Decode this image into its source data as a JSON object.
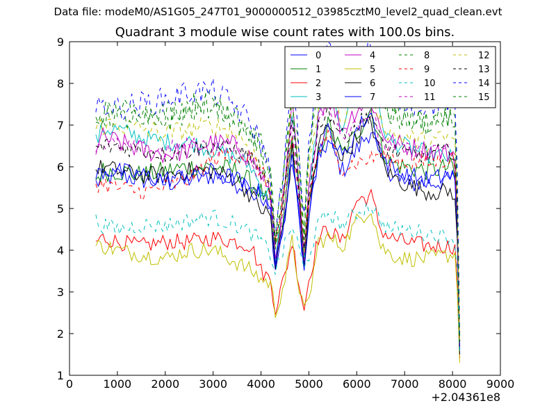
{
  "suptitle": "Data file: modeM0/AS1G05_247T01_9000000512_03985cztM0_level2_quad_clean.evt",
  "chart_data": {
    "type": "line",
    "title": "Quadrant 3 module wise count rates with 100.0s bins.",
    "xlabel": "",
    "ylabel": "",
    "x_offset_label": "+2.04361e8",
    "xlim": [
      0,
      9000
    ],
    "ylim": [
      1,
      9
    ],
    "x_ticks": [
      "0",
      "1000",
      "2000",
      "3000",
      "4000",
      "5000",
      "6000",
      "7000",
      "8000",
      "9000"
    ],
    "y_ticks": [
      "1",
      "2",
      "3",
      "4",
      "5",
      "6",
      "7",
      "8",
      "9"
    ],
    "grid": false,
    "legend_position": "top-right",
    "legend_columns": 4,
    "x_domain": [
      550,
      8150
    ],
    "keyframes_x": [
      550,
      700,
      1000,
      1500,
      2000,
      2500,
      3000,
      3500,
      3800,
      4000,
      4200,
      4300,
      4500,
      4650,
      4800,
      4900,
      5000,
      5200,
      5400,
      5700,
      6000,
      6300,
      6500,
      6700,
      7000,
      7500,
      8000,
      8080,
      8150
    ],
    "series": [
      {
        "name": "0",
        "color": "#0000ff",
        "dash": "solid",
        "keyframe_values": [
          5.6,
          5.7,
          5.8,
          5.7,
          5.6,
          5.7,
          5.8,
          5.6,
          5.6,
          5.4,
          4.9,
          3.5,
          4.8,
          6.2,
          4.8,
          3.6,
          4.8,
          6.2,
          6.6,
          5.9,
          6.4,
          6.9,
          6.2,
          5.9,
          5.6,
          5.6,
          5.7,
          5.5,
          1.6
        ],
        "noise": 0.25
      },
      {
        "name": "1",
        "color": "#008000",
        "dash": "solid",
        "keyframe_values": [
          5.7,
          5.9,
          5.9,
          5.8,
          5.9,
          6.0,
          6.0,
          5.9,
          5.6,
          5.4,
          5.0,
          3.7,
          5.0,
          6.7,
          5.2,
          3.8,
          5.0,
          6.3,
          7.0,
          6.3,
          6.8,
          7.4,
          6.5,
          6.1,
          6.0,
          5.9,
          6.0,
          5.6,
          1.6
        ],
        "noise": 0.25
      },
      {
        "name": "2",
        "color": "#ff0000",
        "dash": "solid",
        "keyframe_values": [
          4.2,
          4.3,
          4.2,
          4.1,
          4.2,
          4.2,
          4.3,
          4.2,
          4.1,
          3.5,
          3.3,
          2.6,
          3.4,
          4.2,
          3.2,
          2.6,
          3.3,
          4.3,
          4.5,
          4.2,
          5.2,
          5.3,
          4.5,
          4.3,
          4.2,
          4.1,
          4.1,
          4.0,
          1.4
        ],
        "noise": 0.2
      },
      {
        "name": "3",
        "color": "#00bfbf",
        "dash": "solid",
        "keyframe_values": [
          6.6,
          6.9,
          6.9,
          6.7,
          6.6,
          6.6,
          6.4,
          6.2,
          6.0,
          5.5,
          5.3,
          3.7,
          5.4,
          7.4,
          5.5,
          3.7,
          5.5,
          7.2,
          7.8,
          7.0,
          8.1,
          8.3,
          7.1,
          6.6,
          6.5,
          6.3,
          6.2,
          6.0,
          1.7
        ],
        "noise": 0.22
      },
      {
        "name": "4",
        "color": "#bf00bf",
        "dash": "solid",
        "keyframe_values": [
          6.5,
          6.7,
          6.6,
          6.4,
          6.3,
          6.4,
          6.6,
          6.5,
          6.2,
          5.8,
          5.3,
          3.8,
          5.5,
          7.5,
          5.4,
          3.8,
          5.4,
          7.3,
          7.7,
          6.9,
          7.4,
          7.6,
          6.9,
          6.6,
          6.5,
          6.4,
          6.3,
          6.1,
          1.7
        ],
        "noise": 0.25
      },
      {
        "name": "5",
        "color": "#bfbf00",
        "dash": "solid",
        "keyframe_values": [
          4.1,
          4.1,
          4.0,
          3.9,
          3.8,
          4.0,
          4.0,
          3.7,
          3.5,
          3.3,
          3.2,
          2.5,
          3.3,
          4.2,
          3.1,
          2.5,
          2.8,
          4.2,
          4.3,
          4.1,
          4.7,
          5.0,
          4.1,
          3.9,
          3.8,
          3.8,
          3.9,
          3.9,
          1.3
        ],
        "noise": 0.2
      },
      {
        "name": "6",
        "color": "#000000",
        "dash": "solid",
        "keyframe_values": [
          5.9,
          6.0,
          5.9,
          5.8,
          5.8,
          5.9,
          5.9,
          5.7,
          5.3,
          5.0,
          4.8,
          3.6,
          4.8,
          6.4,
          5.0,
          3.7,
          5.0,
          6.5,
          7.0,
          6.2,
          6.7,
          7.1,
          6.2,
          5.8,
          5.6,
          5.4,
          5.4,
          5.1,
          1.5
        ],
        "noise": 0.22
      },
      {
        "name": "7",
        "color": "#0000ff",
        "dash": "solid",
        "keyframe_values": [
          5.8,
          5.9,
          5.9,
          5.8,
          5.7,
          5.8,
          5.9,
          5.7,
          5.4,
          5.3,
          5.1,
          3.6,
          4.9,
          6.1,
          4.9,
          3.7,
          4.9,
          6.3,
          6.9,
          6.2,
          6.9,
          7.3,
          6.3,
          6.0,
          5.8,
          5.7,
          5.8,
          5.5,
          1.6
        ],
        "noise": 0.22
      },
      {
        "name": "8",
        "color": "#008000",
        "dash": "dashed",
        "keyframe_values": [
          7.2,
          7.3,
          7.4,
          7.3,
          7.3,
          7.5,
          7.6,
          7.2,
          6.8,
          6.5,
          5.8,
          4.3,
          6.0,
          7.8,
          6.0,
          4.5,
          6.4,
          8.0,
          8.6,
          7.8,
          8.3,
          8.6,
          7.8,
          7.3,
          7.2,
          7.1,
          7.2,
          6.9,
          1.9
        ],
        "noise": 0.3
      },
      {
        "name": "9",
        "color": "#ff0000",
        "dash": "dashed",
        "keyframe_values": [
          5.6,
          5.6,
          5.5,
          5.4,
          5.5,
          5.7,
          6.2,
          6.3,
          6.2,
          5.9,
          5.4,
          4.2,
          5.4,
          6.6,
          5.2,
          4.0,
          5.2,
          6.4,
          6.7,
          6.0,
          6.1,
          6.2,
          6.3,
          6.2,
          6.1,
          6.1,
          6.2,
          6.0,
          1.9
        ],
        "noise": 0.22
      },
      {
        "name": "10",
        "color": "#00bfbf",
        "dash": "dashed",
        "keyframe_values": [
          4.7,
          4.6,
          4.5,
          4.6,
          4.6,
          4.7,
          4.8,
          4.6,
          4.4,
          4.2,
          3.9,
          3.5,
          4.1,
          4.6,
          4.0,
          3.5,
          3.9,
          4.6,
          4.9,
          4.6,
          4.9,
          5.1,
          4.7,
          4.5,
          4.5,
          4.4,
          4.3,
          4.2,
          1.5
        ],
        "noise": 0.2
      },
      {
        "name": "11",
        "color": "#bf00bf",
        "dash": "dashed",
        "keyframe_values": [
          6.5,
          6.6,
          6.5,
          6.4,
          6.4,
          6.5,
          6.5,
          6.4,
          6.1,
          5.8,
          5.2,
          3.9,
          5.3,
          7.0,
          5.2,
          3.9,
          5.3,
          7.0,
          7.5,
          6.8,
          7.1,
          7.3,
          6.6,
          6.4,
          6.4,
          6.3,
          6.4,
          6.2,
          1.8
        ],
        "noise": 0.22
      },
      {
        "name": "12",
        "color": "#bfbf00",
        "dash": "dashed",
        "keyframe_values": [
          6.9,
          7.0,
          7.0,
          6.9,
          6.8,
          6.9,
          7.0,
          6.8,
          6.4,
          6.0,
          5.4,
          4.0,
          5.6,
          7.5,
          5.6,
          4.1,
          5.8,
          7.5,
          8.0,
          7.2,
          7.7,
          8.0,
          7.1,
          6.8,
          6.7,
          6.6,
          6.7,
          6.4,
          1.8
        ],
        "noise": 0.25
      },
      {
        "name": "13",
        "color": "#000000",
        "dash": "dashed",
        "keyframe_values": [
          6.4,
          6.5,
          6.5,
          6.4,
          6.3,
          6.4,
          6.5,
          6.4,
          6.2,
          5.9,
          5.4,
          4.0,
          5.5,
          7.1,
          5.3,
          4.0,
          5.4,
          7.0,
          7.4,
          6.7,
          7.0,
          7.3,
          6.6,
          6.4,
          6.3,
          6.3,
          6.4,
          6.2,
          1.8
        ],
        "noise": 0.22
      },
      {
        "name": "14",
        "color": "#0000ff",
        "dash": "dashed",
        "keyframe_values": [
          7.3,
          7.5,
          7.4,
          7.5,
          7.6,
          7.8,
          7.8,
          7.4,
          7.0,
          6.6,
          5.8,
          4.2,
          6.2,
          8.2,
          6.3,
          4.6,
          6.6,
          8.4,
          8.9,
          8.1,
          8.7,
          9.0,
          8.2,
          7.8,
          7.6,
          7.5,
          7.6,
          7.3,
          2.0
        ],
        "noise": 0.32
      },
      {
        "name": "15",
        "color": "#008000",
        "dash": "dashed",
        "keyframe_values": [
          7.1,
          7.2,
          7.2,
          7.1,
          7.1,
          7.3,
          7.5,
          7.1,
          6.7,
          6.4,
          5.7,
          4.2,
          5.9,
          7.7,
          5.9,
          4.4,
          6.2,
          7.8,
          8.4,
          7.6,
          8.1,
          8.4,
          7.6,
          7.2,
          7.1,
          7.0,
          7.1,
          6.8,
          1.9
        ],
        "noise": 0.3
      }
    ]
  }
}
